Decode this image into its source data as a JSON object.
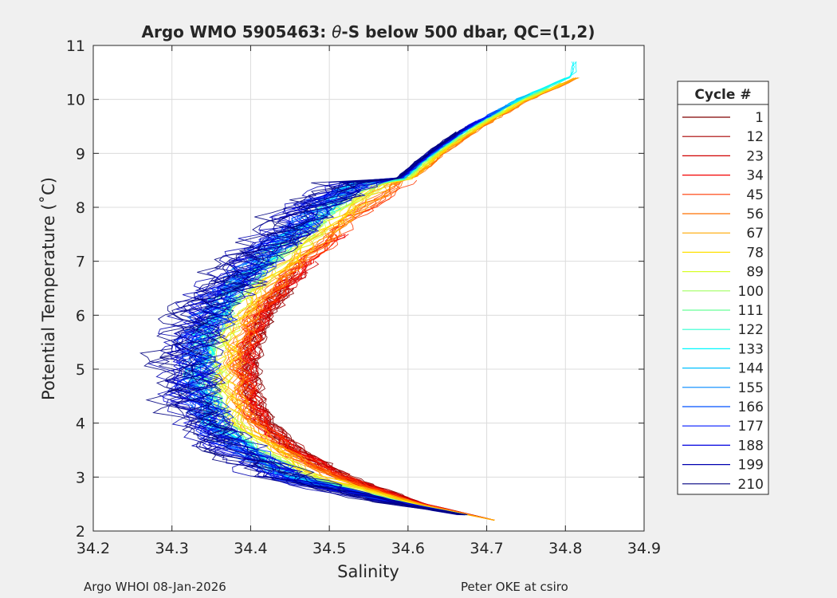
{
  "chart_data": {
    "type": "line",
    "title": "Argo WMO 5905463: θ-S below 500 dbar,  QC=(1,2)",
    "title_parts": {
      "prefix": "Argo WMO 5905463: ",
      "theta": "θ",
      "suffix": "-S below 500 dbar,  QC=(1,2)"
    },
    "xlabel": "Salinity",
    "ylabel": "Potential Temperature (˚C)",
    "xlim": [
      34.2,
      34.9
    ],
    "ylim": [
      2,
      11
    ],
    "xticks": [
      34.2,
      34.3,
      34.4,
      34.5,
      34.6,
      34.7,
      34.8,
      34.9
    ],
    "yticks": [
      2,
      3,
      4,
      5,
      6,
      7,
      8,
      9,
      10,
      11
    ],
    "xtick_labels": [
      "34.2",
      "34.3",
      "34.4",
      "34.5",
      "34.6",
      "34.7",
      "34.8",
      "34.9"
    ],
    "ytick_labels": [
      "2",
      "3",
      "4",
      "5",
      "6",
      "7",
      "8",
      "9",
      "10",
      "11"
    ],
    "grid": true,
    "legend": {
      "title": "Cycle #",
      "placement": "right-outside",
      "entries": [
        {
          "label": "1",
          "color": "#800000"
        },
        {
          "label": "12",
          "color": "#a80000"
        },
        {
          "label": "23",
          "color": "#d00000"
        },
        {
          "label": "34",
          "color": "#f40000"
        },
        {
          "label": "45",
          "color": "#ff3800"
        },
        {
          "label": "56",
          "color": "#ff7000"
        },
        {
          "label": "67",
          "color": "#ffa800"
        },
        {
          "label": "78",
          "color": "#ffe000"
        },
        {
          "label": "89",
          "color": "#d8ff28"
        },
        {
          "label": "100",
          "color": "#a0ff60"
        },
        {
          "label": "111",
          "color": "#68ff98"
        },
        {
          "label": "122",
          "color": "#30ffd0"
        },
        {
          "label": "133",
          "color": "#00f8ff"
        },
        {
          "label": "144",
          "color": "#00c0ff"
        },
        {
          "label": "155",
          "color": "#0088ff"
        },
        {
          "label": "166",
          "color": "#0050ff"
        },
        {
          "label": "177",
          "color": "#0018ff"
        },
        {
          "label": "188",
          "color": "#0000e0"
        },
        {
          "label": "199",
          "color": "#0000b0"
        },
        {
          "label": "210",
          "color": "#000080"
        }
      ]
    },
    "profile_backbone": [
      {
        "t": 2.2,
        "s": 34.71
      },
      {
        "t": 2.5,
        "s": 34.62
      },
      {
        "t": 3.0,
        "s": 34.52
      },
      {
        "t": 3.5,
        "s": 34.46
      },
      {
        "t": 4.0,
        "s": 34.42
      },
      {
        "t": 4.5,
        "s": 34.405
      },
      {
        "t": 5.0,
        "s": 34.4
      },
      {
        "t": 5.5,
        "s": 34.405
      },
      {
        "t": 6.0,
        "s": 34.42
      },
      {
        "t": 6.5,
        "s": 34.445
      },
      {
        "t": 7.0,
        "s": 34.48
      },
      {
        "t": 7.5,
        "s": 34.52
      },
      {
        "t": 8.0,
        "s": 34.56
      },
      {
        "t": 8.5,
        "s": 34.61
      },
      {
        "t": 9.0,
        "s": 34.65
      },
      {
        "t": 9.5,
        "s": 34.7
      },
      {
        "t": 10.0,
        "s": 34.76
      },
      {
        "t": 10.45,
        "s": 34.83
      }
    ],
    "cycle_groups": [
      {
        "color": "#800000",
        "offset": 0.0,
        "spread": 0.008,
        "tmin": 2.2,
        "tmax": 6.5,
        "count": 6
      },
      {
        "color": "#a80000",
        "offset": -0.002,
        "spread": 0.009,
        "tmin": 2.2,
        "tmax": 6.8,
        "count": 6
      },
      {
        "color": "#d00000",
        "offset": -0.004,
        "spread": 0.01,
        "tmin": 2.2,
        "tmax": 7.0,
        "count": 6
      },
      {
        "color": "#f40000",
        "offset": -0.008,
        "spread": 0.01,
        "tmin": 2.2,
        "tmax": 7.5,
        "count": 6
      },
      {
        "color": "#ff3800",
        "offset": -0.012,
        "spread": 0.01,
        "tmin": 2.2,
        "tmax": 8.5,
        "count": 5
      },
      {
        "color": "#ff7000",
        "offset": -0.018,
        "spread": 0.01,
        "tmin": 2.2,
        "tmax": 10.4,
        "count": 5
      },
      {
        "color": "#ffa800",
        "offset": -0.026,
        "spread": 0.01,
        "tmin": 2.2,
        "tmax": 10.4,
        "count": 5
      },
      {
        "color": "#ffe000",
        "offset": -0.034,
        "spread": 0.01,
        "tmin": 2.3,
        "tmax": 10.3,
        "count": 4
      },
      {
        "color": "#d8ff28",
        "offset": -0.042,
        "spread": 0.01,
        "tmin": 2.3,
        "tmax": 10.2,
        "count": 4
      },
      {
        "color": "#a0ff60",
        "offset": -0.052,
        "spread": 0.012,
        "tmin": 2.3,
        "tmax": 10.2,
        "count": 4
      },
      {
        "color": "#68ff98",
        "offset": -0.06,
        "spread": 0.012,
        "tmin": 2.3,
        "tmax": 10.3,
        "count": 4
      },
      {
        "color": "#30ffd0",
        "offset": -0.064,
        "spread": 0.012,
        "tmin": 2.3,
        "tmax": 10.4,
        "count": 4
      },
      {
        "color": "#00f8ff",
        "offset": -0.066,
        "spread": 0.012,
        "tmin": 2.3,
        "tmax": 10.7,
        "count": 4
      },
      {
        "color": "#00c0ff",
        "offset": -0.068,
        "spread": 0.014,
        "tmin": 2.3,
        "tmax": 10.1,
        "count": 4
      },
      {
        "color": "#0088ff",
        "offset": -0.07,
        "spread": 0.016,
        "tmin": 2.3,
        "tmax": 9.9,
        "count": 5
      },
      {
        "color": "#0050ff",
        "offset": -0.072,
        "spread": 0.018,
        "tmin": 2.3,
        "tmax": 9.8,
        "count": 5
      },
      {
        "color": "#0018ff",
        "offset": -0.074,
        "spread": 0.02,
        "tmin": 2.3,
        "tmax": 9.7,
        "count": 6
      },
      {
        "color": "#0000e0",
        "offset": -0.078,
        "spread": 0.024,
        "tmin": 2.3,
        "tmax": 9.6,
        "count": 6
      },
      {
        "color": "#0000b0",
        "offset": -0.082,
        "spread": 0.028,
        "tmin": 2.3,
        "tmax": 9.5,
        "count": 6
      },
      {
        "color": "#000080",
        "offset": -0.086,
        "spread": 0.03,
        "tmin": 2.3,
        "tmax": 9.4,
        "count": 6
      }
    ]
  },
  "footer": {
    "left": "Argo WHOI 08-Jan-2026",
    "right": "Peter OKE at csiro"
  }
}
